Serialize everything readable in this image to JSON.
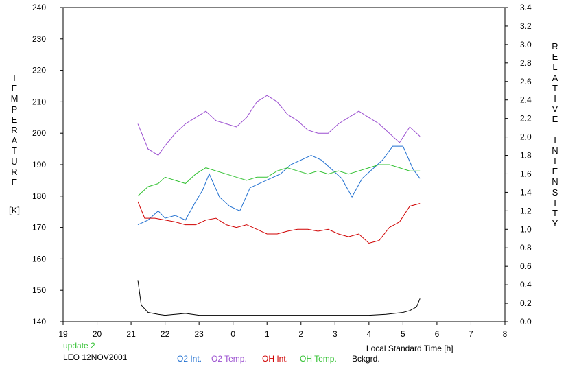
{
  "chart_data": {
    "type": "line",
    "title": "",
    "xlabel": "Local Standard Time [h]",
    "ylabel_left": "TEMPERATURE",
    "ylabel_left_unit": "[K]",
    "ylabel_right": "RELATIVE INTENSITY",
    "x_tick_labels": [
      "19",
      "20",
      "21",
      "22",
      "23",
      "0",
      "1",
      "2",
      "3",
      "4",
      "5",
      "6",
      "7",
      "8"
    ],
    "x_range": [
      19,
      32
    ],
    "y_left_range": [
      140,
      240
    ],
    "y_left_ticks": [
      140,
      150,
      160,
      170,
      180,
      190,
      200,
      210,
      220,
      230,
      240
    ],
    "y_right_range": [
      0.0,
      3.4
    ],
    "y_right_tick_labels": [
      "0.0",
      "0.2",
      "0.4",
      "0.6",
      "0.8",
      "1.0",
      "1.2",
      "1.4",
      "1.6",
      "1.8",
      "2.0",
      "2.2",
      "2.4",
      "2.6",
      "2.8",
      "3.0",
      "3.2",
      "3.4"
    ],
    "grid": false,
    "legend_position": "bottom",
    "series": [
      {
        "name": "O2 Int.",
        "axis": "right",
        "color": "#1f6fd0",
        "x": [
          21.2,
          21.5,
          21.8,
          22.0,
          22.3,
          22.6,
          22.9,
          23.1,
          23.3,
          23.6,
          23.9,
          24.2,
          24.5,
          24.8,
          25.1,
          25.4,
          25.7,
          26.0,
          26.3,
          26.6,
          26.9,
          27.2,
          27.5,
          27.8,
          28.1,
          28.4,
          28.7,
          29.0,
          29.3,
          29.5
        ],
        "y": [
          1.05,
          1.1,
          1.2,
          1.12,
          1.15,
          1.1,
          1.3,
          1.42,
          1.6,
          1.35,
          1.25,
          1.2,
          1.45,
          1.5,
          1.55,
          1.6,
          1.7,
          1.75,
          1.8,
          1.75,
          1.65,
          1.55,
          1.35,
          1.55,
          1.65,
          1.75,
          1.9,
          1.9,
          1.65,
          1.55
        ]
      },
      {
        "name": "O2 Temp.",
        "axis": "left",
        "color": "#9b4fd0",
        "x": [
          21.2,
          21.5,
          21.8,
          22.0,
          22.3,
          22.6,
          22.9,
          23.2,
          23.5,
          23.8,
          24.1,
          24.4,
          24.7,
          25.0,
          25.3,
          25.6,
          25.9,
          26.2,
          26.5,
          26.8,
          27.1,
          27.4,
          27.7,
          28.0,
          28.3,
          28.6,
          28.9,
          29.2,
          29.5
        ],
        "y": [
          203,
          195,
          193,
          196,
          200,
          203,
          205,
          207,
          204,
          203,
          202,
          205,
          210,
          212,
          210,
          206,
          204,
          201,
          200,
          200,
          203,
          205,
          207,
          205,
          203,
          200,
          197,
          202,
          199
        ]
      },
      {
        "name": "OH Int.",
        "axis": "right",
        "color": "#d00000",
        "x": [
          21.2,
          21.4,
          21.7,
          22.0,
          22.3,
          22.6,
          22.9,
          23.2,
          23.5,
          23.8,
          24.1,
          24.4,
          24.7,
          25.0,
          25.3,
          25.6,
          25.9,
          26.2,
          26.5,
          26.8,
          27.1,
          27.4,
          27.7,
          28.0,
          28.3,
          28.6,
          28.9,
          29.2,
          29.5
        ],
        "y": [
          1.3,
          1.12,
          1.12,
          1.1,
          1.08,
          1.05,
          1.05,
          1.1,
          1.12,
          1.05,
          1.02,
          1.05,
          1.0,
          0.95,
          0.95,
          0.98,
          1.0,
          1.0,
          0.98,
          1.0,
          0.95,
          0.92,
          0.95,
          0.85,
          0.88,
          1.02,
          1.08,
          1.25,
          1.28
        ]
      },
      {
        "name": "OH Temp.",
        "axis": "left",
        "color": "#33c233",
        "x": [
          21.2,
          21.5,
          21.8,
          22.0,
          22.3,
          22.6,
          22.9,
          23.2,
          23.5,
          23.8,
          24.1,
          24.4,
          24.7,
          25.0,
          25.3,
          25.6,
          25.9,
          26.2,
          26.5,
          26.8,
          27.1,
          27.4,
          27.7,
          28.0,
          28.3,
          28.6,
          28.9,
          29.2,
          29.5
        ],
        "y": [
          180,
          183,
          184,
          186,
          185,
          184,
          187,
          189,
          188,
          187,
          186,
          185,
          186,
          186,
          188,
          189,
          188,
          187,
          188,
          187,
          188,
          187,
          188,
          189,
          190,
          190,
          189,
          188,
          188
        ]
      },
      {
        "name": "Bckgrd.",
        "axis": "right",
        "color": "#000000",
        "x": [
          21.2,
          21.3,
          21.5,
          21.8,
          22.0,
          22.3,
          22.6,
          23.0,
          23.5,
          24.0,
          24.5,
          25.0,
          25.5,
          26.0,
          26.5,
          27.0,
          27.5,
          28.0,
          28.5,
          29.0,
          29.2,
          29.4,
          29.5
        ],
        "y": [
          0.45,
          0.18,
          0.1,
          0.08,
          0.07,
          0.08,
          0.09,
          0.07,
          0.07,
          0.07,
          0.07,
          0.07,
          0.07,
          0.07,
          0.07,
          0.07,
          0.07,
          0.07,
          0.08,
          0.1,
          0.12,
          0.16,
          0.25
        ]
      }
    ]
  },
  "info": {
    "update_label": "update 2",
    "update_color": "#33c233",
    "station_date": "LEO 12NOV2001"
  }
}
